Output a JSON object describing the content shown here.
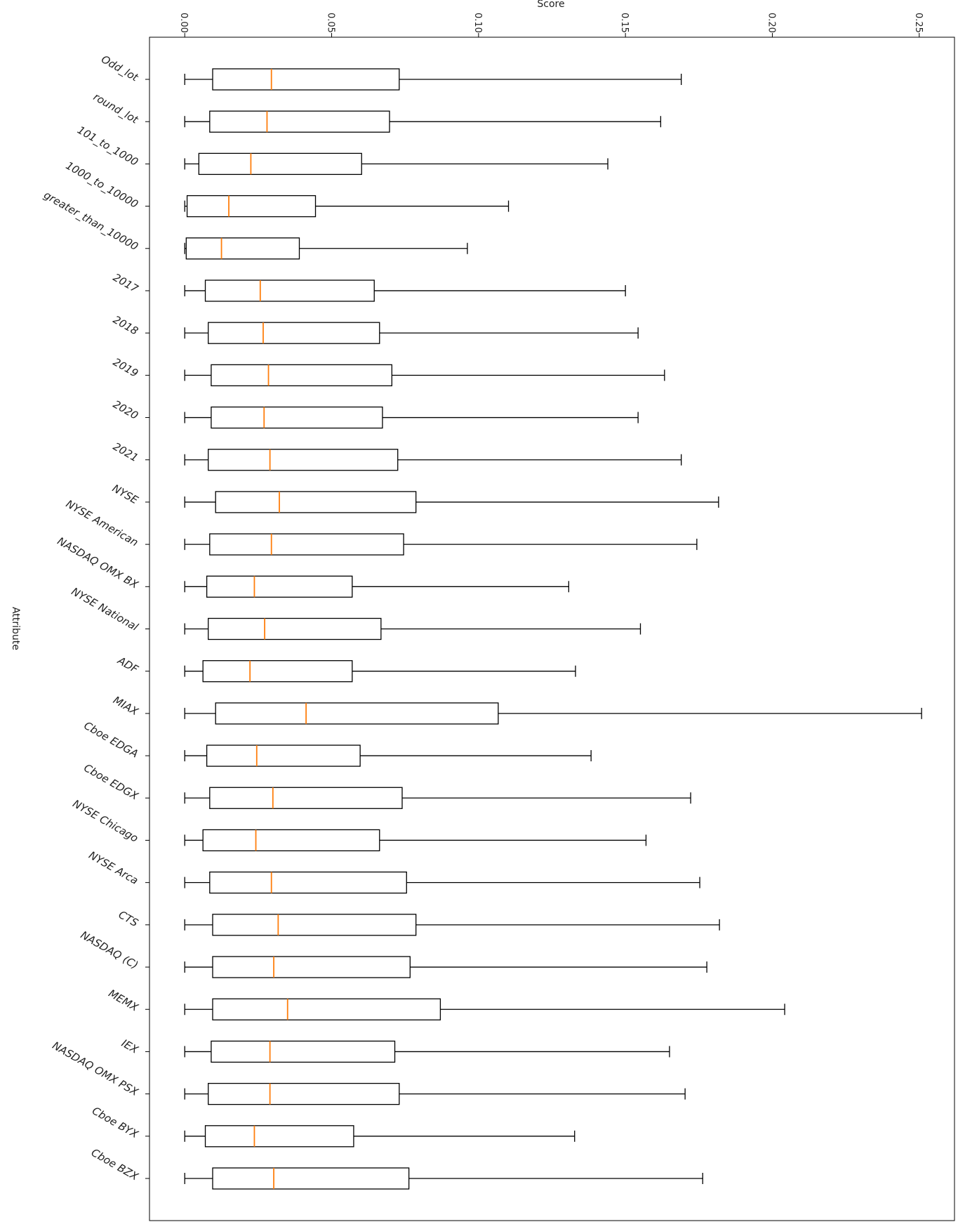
{
  "chart_data": {
    "type": "boxplot",
    "orientation": "horizontal",
    "title": "",
    "xlabel": "Score",
    "ylabel": "Attribute",
    "xlim": [
      -0.012,
      0.262
    ],
    "xticks": [
      0.0,
      0.05,
      0.1,
      0.15,
      0.2,
      0.25
    ],
    "xtick_labels": [
      "0.00",
      "0.05",
      "0.10",
      "0.15",
      "0.20",
      "0.25"
    ],
    "grid": false,
    "legend": "none",
    "box_color": "#000000",
    "median_color": "#ff7f0e",
    "categories": [
      "Odd_lot",
      "round_lot",
      "101_to_1000",
      "1000_to_10000",
      "greater_than_10000",
      "2017",
      "2018",
      "2019",
      "2020",
      "2021",
      "NYSE",
      "NYSE American",
      "NASDAQ OMX BX",
      "NYSE National",
      "ADF",
      "MIAX",
      "Cboe EDGA",
      "Cboe EDGX",
      "NYSE Chicago",
      "NYSE Arca",
      "CTS",
      "NASDAQ (C)",
      "MEMX",
      "IEX",
      "NASDAQ OMX PSX",
      "Cboe BYX",
      "Cboe BZX"
    ],
    "boxes": [
      {
        "whislo": 0.0,
        "q1": 0.0095,
        "med": 0.0295,
        "q3": 0.073,
        "whishi": 0.169
      },
      {
        "whislo": 0.0,
        "q1": 0.0085,
        "med": 0.028,
        "q3": 0.0697,
        "whishi": 0.162
      },
      {
        "whislo": 0.0,
        "q1": 0.0048,
        "med": 0.0225,
        "q3": 0.0602,
        "whishi": 0.144
      },
      {
        "whislo": 0.0,
        "q1": 0.0008,
        "med": 0.015,
        "q3": 0.0445,
        "whishi": 0.1102
      },
      {
        "whislo": 0.0,
        "q1": 0.0005,
        "med": 0.0125,
        "q3": 0.039,
        "whishi": 0.0962
      },
      {
        "whislo": 0.0,
        "q1": 0.007,
        "med": 0.0257,
        "q3": 0.0645,
        "whishi": 0.15
      },
      {
        "whislo": 0.0,
        "q1": 0.008,
        "med": 0.0267,
        "q3": 0.0663,
        "whishi": 0.1543
      },
      {
        "whislo": 0.0,
        "q1": 0.009,
        "med": 0.0285,
        "q3": 0.0705,
        "whishi": 0.1633
      },
      {
        "whislo": 0.0,
        "q1": 0.009,
        "med": 0.027,
        "q3": 0.0673,
        "whishi": 0.1543
      },
      {
        "whislo": 0.0,
        "q1": 0.008,
        "med": 0.029,
        "q3": 0.0725,
        "whishi": 0.169
      },
      {
        "whislo": 0.0,
        "q1": 0.0105,
        "med": 0.0322,
        "q3": 0.0787,
        "whishi": 0.1817
      },
      {
        "whislo": 0.0,
        "q1": 0.0085,
        "med": 0.0295,
        "q3": 0.0745,
        "whishi": 0.1743
      },
      {
        "whislo": 0.0,
        "q1": 0.0075,
        "med": 0.0237,
        "q3": 0.057,
        "whishi": 0.1307
      },
      {
        "whislo": 0.0,
        "q1": 0.008,
        "med": 0.0272,
        "q3": 0.0668,
        "whishi": 0.1551
      },
      {
        "whislo": 0.0,
        "q1": 0.0062,
        "med": 0.0222,
        "q3": 0.057,
        "whishi": 0.133
      },
      {
        "whislo": 0.0,
        "q1": 0.0105,
        "med": 0.0413,
        "q3": 0.1067,
        "whishi": 0.2508
      },
      {
        "whislo": 0.0,
        "q1": 0.0075,
        "med": 0.0245,
        "q3": 0.0597,
        "whishi": 0.1383
      },
      {
        "whislo": 0.0,
        "q1": 0.0085,
        "med": 0.03,
        "q3": 0.074,
        "whishi": 0.1722
      },
      {
        "whislo": 0.0,
        "q1": 0.0062,
        "med": 0.0242,
        "q3": 0.0663,
        "whishi": 0.157
      },
      {
        "whislo": 0.0,
        "q1": 0.0085,
        "med": 0.0295,
        "q3": 0.0755,
        "whishi": 0.1753
      },
      {
        "whislo": 0.0,
        "q1": 0.0095,
        "med": 0.0318,
        "q3": 0.0787,
        "whishi": 0.182
      },
      {
        "whislo": 0.0,
        "q1": 0.0095,
        "med": 0.0303,
        "q3": 0.0767,
        "whishi": 0.1777
      },
      {
        "whislo": 0.0,
        "q1": 0.0095,
        "med": 0.035,
        "q3": 0.087,
        "whishi": 0.2042
      },
      {
        "whislo": 0.0,
        "q1": 0.009,
        "med": 0.029,
        "q3": 0.0715,
        "whishi": 0.165
      },
      {
        "whislo": 0.0,
        "q1": 0.008,
        "med": 0.029,
        "q3": 0.073,
        "whishi": 0.1703
      },
      {
        "whislo": 0.0,
        "q1": 0.007,
        "med": 0.0237,
        "q3": 0.0575,
        "whishi": 0.1327
      },
      {
        "whislo": 0.0,
        "q1": 0.0095,
        "med": 0.0303,
        "q3": 0.0763,
        "whishi": 0.1763
      }
    ]
  }
}
